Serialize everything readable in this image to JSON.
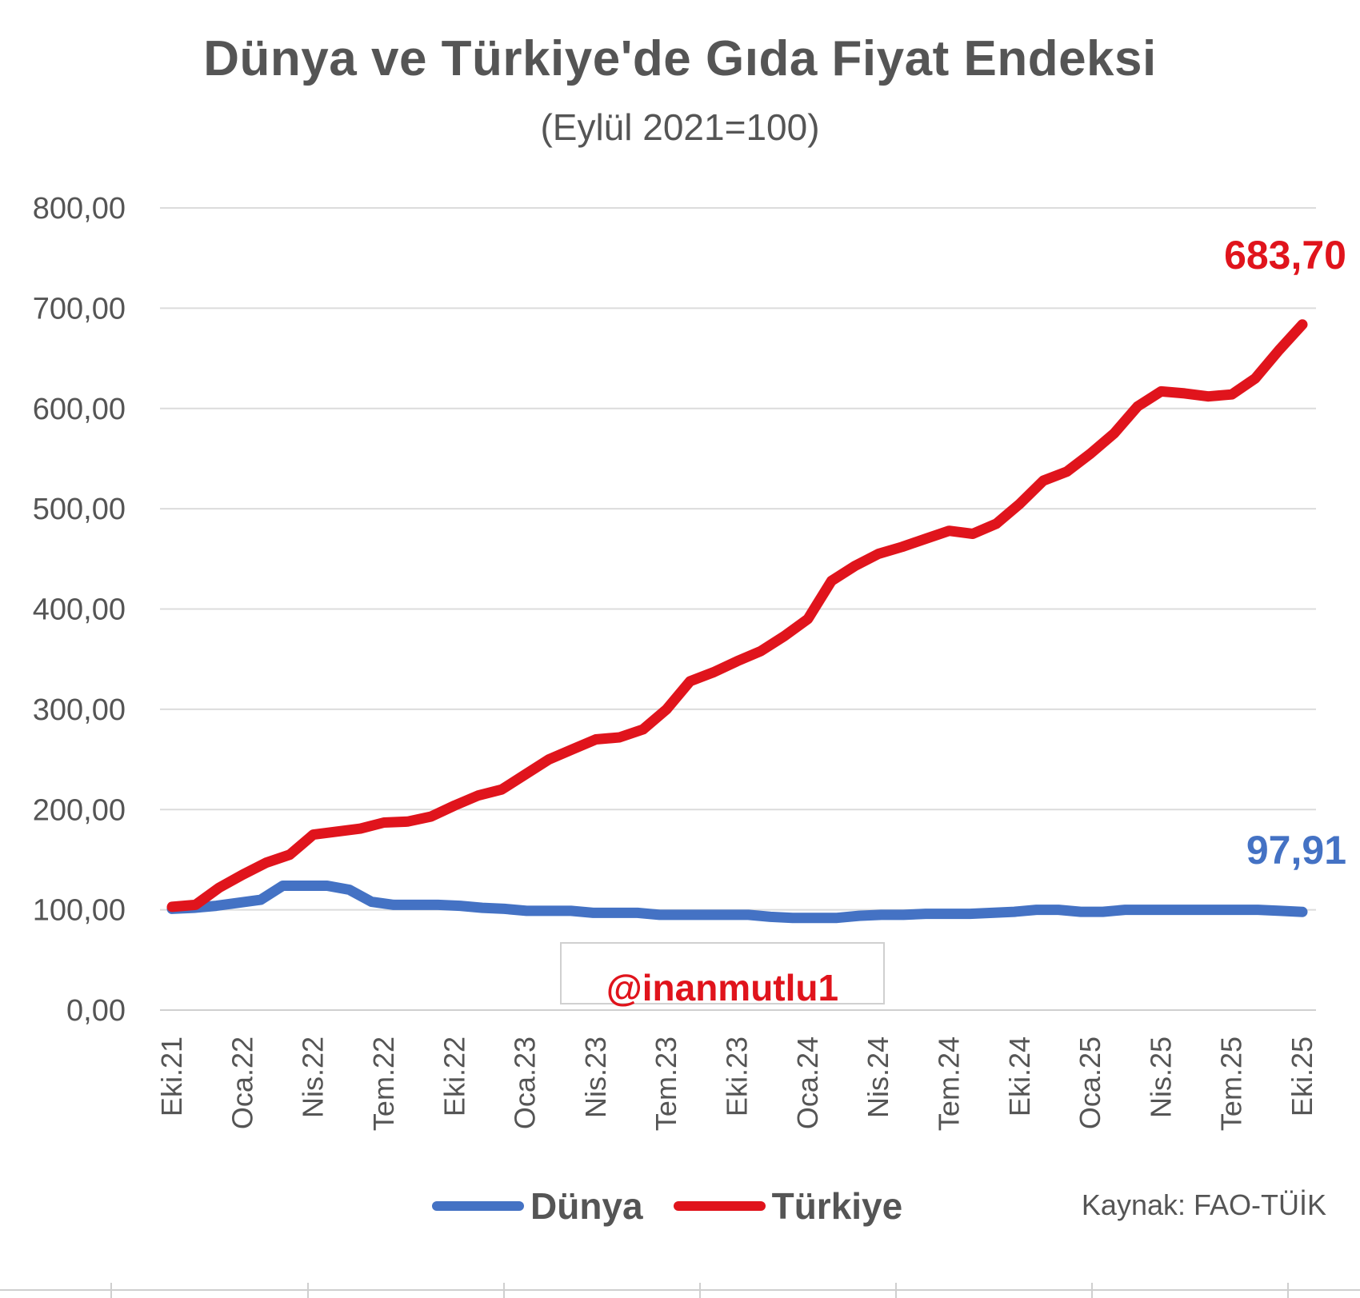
{
  "chart_data": {
    "type": "line",
    "title": "Dünya ve Türkiye'de Gıda Fiyat Endeksi",
    "subtitle": "(Eylül 2021=100)",
    "ylim": [
      0,
      800
    ],
    "yticks": [
      "0,00",
      "100,00",
      "200,00",
      "300,00",
      "400,00",
      "500,00",
      "600,00",
      "700,00",
      "800,00"
    ],
    "xtick_labels": [
      "Eki.21",
      "Oca.22",
      "Nis.22",
      "Tem.22",
      "Eki.22",
      "Oca.23",
      "Nis.23",
      "Tem.23",
      "Eki.23",
      "Oca.24",
      "Nis.24",
      "Tem.24",
      "Eki.24",
      "Oca.25",
      "Nis.25",
      "Tem.25",
      "Eki.25"
    ],
    "grid": true,
    "legend_position": "bottom",
    "series": [
      {
        "name": "Dünya",
        "color": "#4472c4",
        "end_label": "97,91",
        "values": [
          101,
          102,
          104,
          107,
          110,
          124,
          124,
          124,
          120,
          108,
          105,
          105,
          105,
          104,
          102,
          101,
          99,
          99,
          99,
          97,
          97,
          97,
          95,
          95,
          95,
          95,
          95,
          93,
          92,
          92,
          92,
          94,
          95,
          95,
          96,
          96,
          96,
          97,
          98,
          100,
          100,
          98,
          98,
          100,
          100,
          100,
          100,
          100,
          100,
          100,
          99,
          97.91
        ]
      },
      {
        "name": "Türkiye",
        "color": "#e0141c",
        "end_label": "683,70",
        "values": [
          103,
          105,
          122,
          135,
          147,
          155,
          175,
          178,
          181,
          187,
          188,
          193,
          204,
          214,
          220,
          235,
          250,
          260,
          270,
          272,
          280,
          300,
          328,
          337,
          348,
          358,
          373,
          390,
          428,
          443,
          455,
          462,
          470,
          478,
          475,
          485,
          505,
          528,
          537,
          555,
          575,
          602,
          617,
          615,
          612,
          614,
          630,
          658,
          683.7
        ]
      }
    ]
  },
  "watermark": "@inanmutlu1",
  "source": "Kaynak: FAO-TÜİK"
}
